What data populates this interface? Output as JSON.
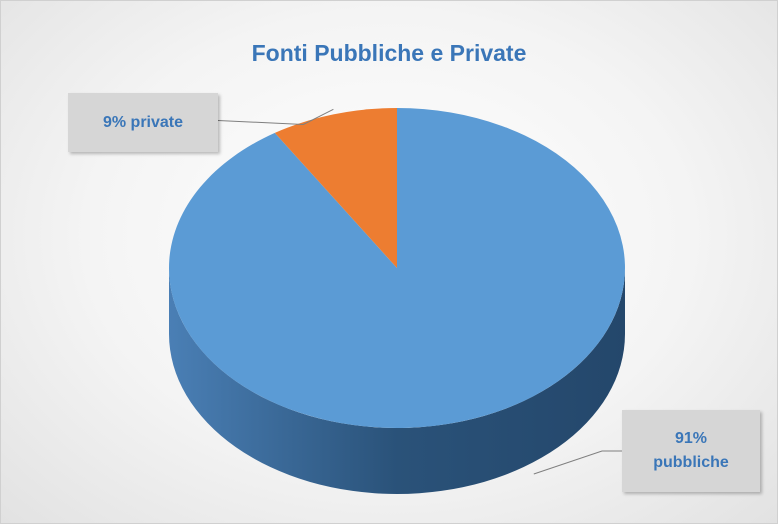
{
  "chart_data": {
    "type": "pie",
    "title": "Fonti Pubbliche e Private",
    "values": [
      91,
      9
    ],
    "value_labels": [
      "91% pubbliche",
      "9% private"
    ],
    "colors": [
      "#5b9bd5",
      "#ed7d31"
    ],
    "start_angle": 0,
    "direction": "clockwise",
    "three_d": true
  }
}
